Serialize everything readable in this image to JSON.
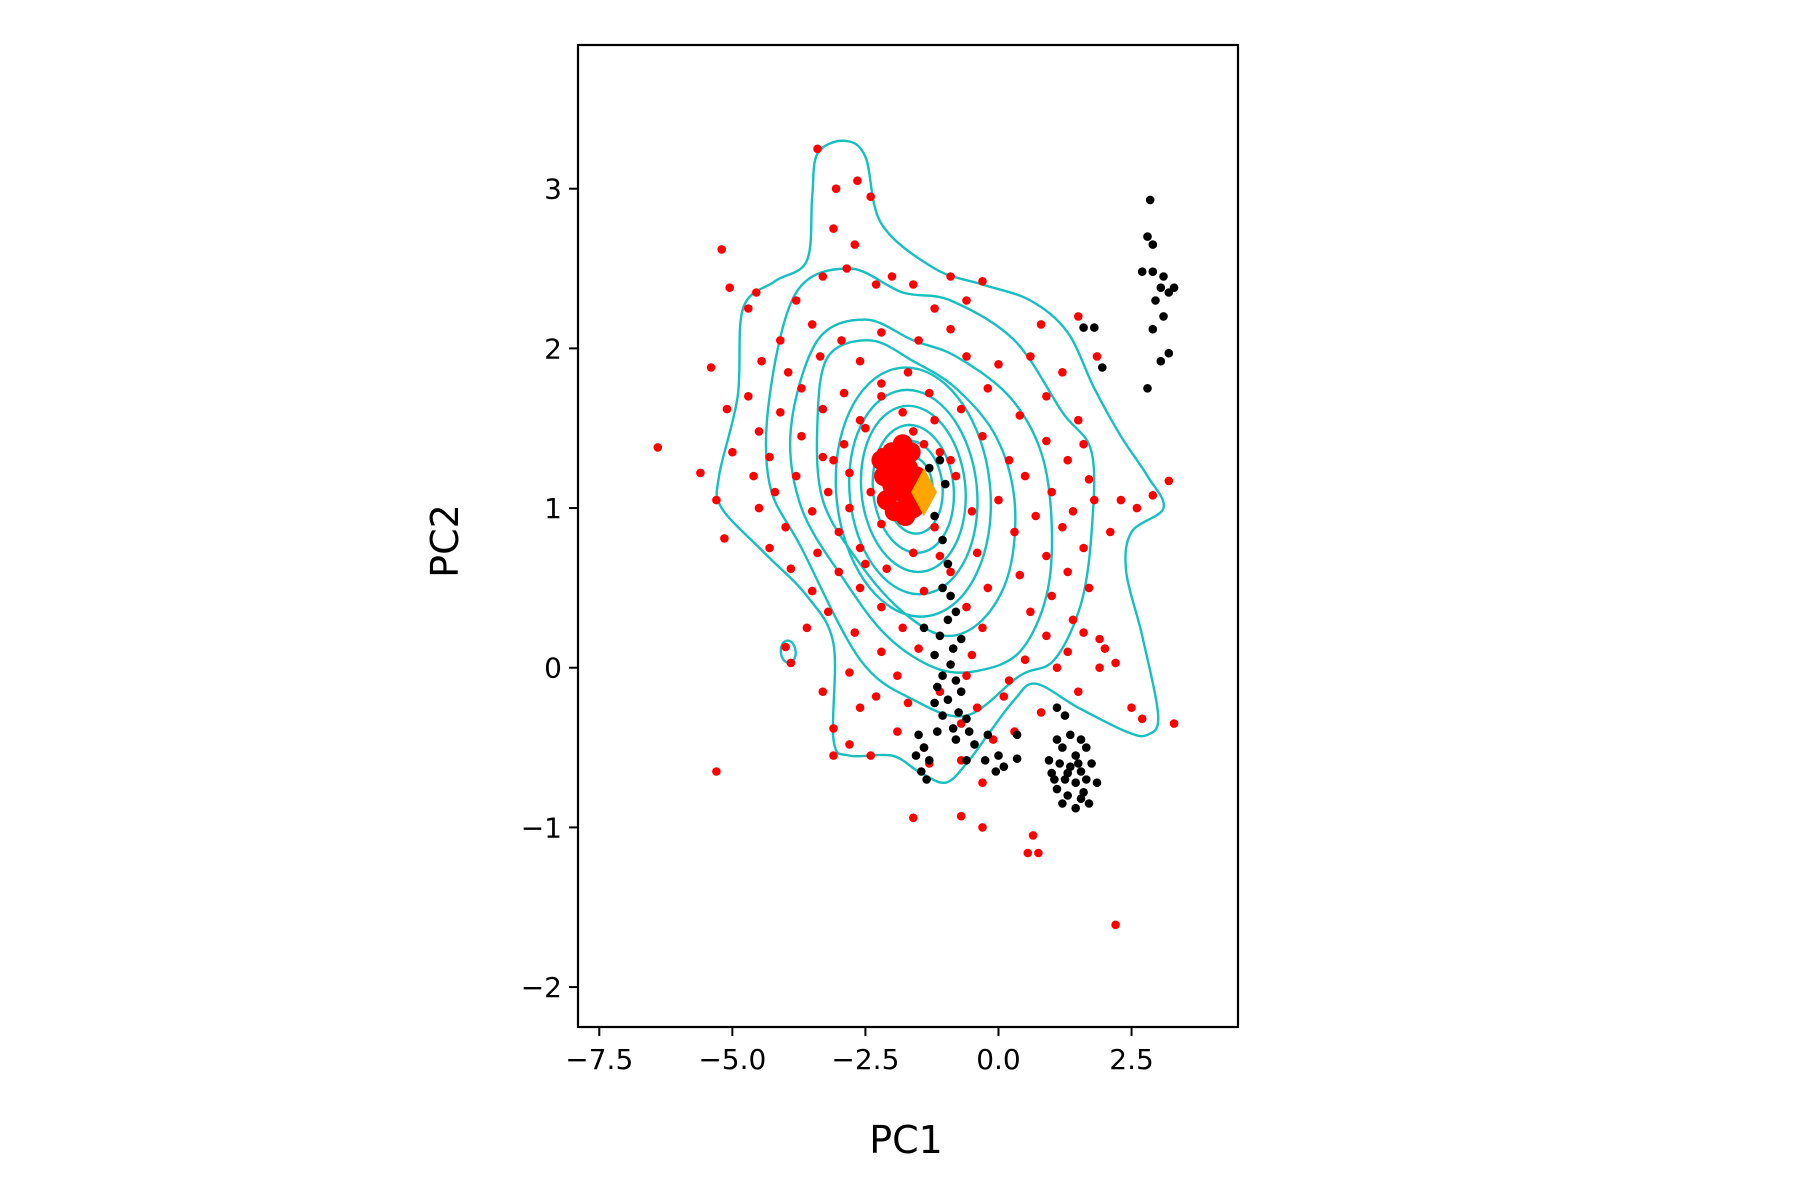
{
  "chart_data": {
    "type": "scatter",
    "title": "",
    "xlabel": "PC1",
    "ylabel": "PC2",
    "xlim": [
      -7.9,
      4.5
    ],
    "ylim": [
      -2.25,
      3.9
    ],
    "xticks": [
      {
        "value": -7.5,
        "label": "−7.5"
      },
      {
        "value": -5.0,
        "label": "−5.0"
      },
      {
        "value": -2.5,
        "label": "−2.5"
      },
      {
        "value": 0.0,
        "label": "0.0"
      },
      {
        "value": 2.5,
        "label": "2.5"
      }
    ],
    "yticks": [
      {
        "value": -2,
        "label": "−2"
      },
      {
        "value": -1,
        "label": "−1"
      },
      {
        "value": 0,
        "label": "0"
      },
      {
        "value": 1,
        "label": "1"
      },
      {
        "value": 2,
        "label": "2"
      },
      {
        "value": 3,
        "label": "3"
      }
    ],
    "grid": false,
    "legend": "none",
    "colors": {
      "red_points": "#ff0000",
      "black_points": "#000000",
      "contours": "#17bfbf",
      "marker": "#ffa500"
    },
    "series": [
      {
        "color": "red_points",
        "points": [
          [
            -3.4,
            3.25
          ],
          [
            -3.05,
            3.0
          ],
          [
            -2.65,
            3.05
          ],
          [
            -2.4,
            2.95
          ],
          [
            -3.1,
            2.75
          ],
          [
            -2.7,
            2.65
          ],
          [
            -2.85,
            2.5
          ],
          [
            -3.3,
            2.45
          ],
          [
            -2.3,
            2.4
          ],
          [
            -2.0,
            2.45
          ],
          [
            -1.6,
            2.4
          ],
          [
            -0.9,
            2.45
          ],
          [
            -0.3,
            2.42
          ],
          [
            1.5,
            2.2
          ],
          [
            -5.2,
            2.62
          ],
          [
            -4.55,
            2.35
          ],
          [
            -5.05,
            2.38
          ],
          [
            -4.7,
            2.25
          ],
          [
            -3.8,
            2.3
          ],
          [
            -1.2,
            2.25
          ],
          [
            -0.6,
            2.3
          ],
          [
            0.8,
            2.15
          ],
          [
            -4.1,
            2.05
          ],
          [
            -3.5,
            2.15
          ],
          [
            -2.95,
            2.05
          ],
          [
            -2.2,
            2.1
          ],
          [
            -1.5,
            2.05
          ],
          [
            -0.9,
            2.12
          ],
          [
            0.6,
            1.95
          ],
          [
            1.85,
            1.95
          ],
          [
            -5.4,
            1.88
          ],
          [
            -4.45,
            1.92
          ],
          [
            -3.95,
            1.85
          ],
          [
            -3.35,
            1.95
          ],
          [
            -2.6,
            1.92
          ],
          [
            -1.7,
            1.85
          ],
          [
            -0.6,
            1.95
          ],
          [
            0.0,
            1.9
          ],
          [
            1.2,
            1.85
          ],
          [
            -4.7,
            1.7
          ],
          [
            -3.7,
            1.75
          ],
          [
            -2.9,
            1.72
          ],
          [
            -2.2,
            1.78
          ],
          [
            -1.3,
            1.72
          ],
          [
            -0.2,
            1.75
          ],
          [
            0.9,
            1.7
          ],
          [
            -5.1,
            1.62
          ],
          [
            -4.1,
            1.6
          ],
          [
            -3.3,
            1.62
          ],
          [
            -0.7,
            1.62
          ],
          [
            0.4,
            1.58
          ],
          [
            1.5,
            1.55
          ],
          [
            -4.5,
            1.48
          ],
          [
            -3.7,
            1.45
          ],
          [
            -2.5,
            1.5
          ],
          [
            -1.6,
            1.48
          ],
          [
            -0.3,
            1.45
          ],
          [
            0.9,
            1.42
          ],
          [
            1.6,
            1.4
          ],
          [
            -6.4,
            1.38
          ],
          [
            -5.0,
            1.35
          ],
          [
            -4.3,
            1.32
          ],
          [
            -3.3,
            1.32
          ],
          [
            -2.2,
            1.35
          ],
          [
            -1.1,
            1.35
          ],
          [
            0.2,
            1.3
          ],
          [
            1.3,
            1.3
          ],
          [
            -4.6,
            1.2
          ],
          [
            -3.8,
            1.2
          ],
          [
            -2.8,
            1.22
          ],
          [
            -2.0,
            1.25
          ],
          [
            -0.8,
            1.2
          ],
          [
            0.5,
            1.2
          ],
          [
            1.7,
            1.18
          ],
          [
            -5.6,
            1.22
          ],
          [
            -4.2,
            1.1
          ],
          [
            -3.2,
            1.1
          ],
          [
            -2.4,
            1.1
          ],
          [
            -1.6,
            1.12
          ],
          [
            0.0,
            1.05
          ],
          [
            1.0,
            1.1
          ],
          [
            1.8,
            1.05
          ],
          [
            2.3,
            1.05
          ],
          [
            3.2,
            1.17
          ],
          [
            -5.3,
            1.05
          ],
          [
            -4.5,
            1.0
          ],
          [
            -3.5,
            0.98
          ],
          [
            -2.8,
            1.0
          ],
          [
            -1.9,
            1.0
          ],
          [
            -0.5,
            0.98
          ],
          [
            0.7,
            0.95
          ],
          [
            1.4,
            0.98
          ],
          [
            2.6,
            1.0
          ],
          [
            2.9,
            1.08
          ],
          [
            -5.15,
            0.81
          ],
          [
            -4.0,
            0.88
          ],
          [
            -3.0,
            0.85
          ],
          [
            -2.2,
            0.9
          ],
          [
            -1.2,
            0.88
          ],
          [
            0.3,
            0.85
          ],
          [
            1.2,
            0.88
          ],
          [
            2.1,
            0.85
          ],
          [
            -4.3,
            0.75
          ],
          [
            -3.4,
            0.72
          ],
          [
            -2.6,
            0.75
          ],
          [
            -1.6,
            0.72
          ],
          [
            -0.4,
            0.72
          ],
          [
            0.9,
            0.7
          ],
          [
            1.6,
            0.75
          ],
          [
            -3.9,
            0.62
          ],
          [
            -3.0,
            0.6
          ],
          [
            -2.1,
            0.62
          ],
          [
            -0.9,
            0.6
          ],
          [
            0.4,
            0.58
          ],
          [
            1.3,
            0.6
          ],
          [
            -3.5,
            0.48
          ],
          [
            -2.6,
            0.5
          ],
          [
            -1.4,
            0.48
          ],
          [
            -0.2,
            0.5
          ],
          [
            1.0,
            0.45
          ],
          [
            1.7,
            0.5
          ],
          [
            -3.2,
            0.35
          ],
          [
            -2.2,
            0.38
          ],
          [
            -0.6,
            0.38
          ],
          [
            0.6,
            0.35
          ],
          [
            1.4,
            0.3
          ],
          [
            -3.6,
            0.25
          ],
          [
            -2.7,
            0.22
          ],
          [
            -1.8,
            0.25
          ],
          [
            -0.3,
            0.25
          ],
          [
            0.9,
            0.2
          ],
          [
            1.6,
            0.22
          ],
          [
            1.9,
            0.18
          ],
          [
            -2.2,
            0.1
          ],
          [
            -1.5,
            0.12
          ],
          [
            -0.5,
            0.08
          ],
          [
            0.5,
            0.05
          ],
          [
            1.3,
            0.1
          ],
          [
            2.0,
            0.12
          ],
          [
            -4.0,
            0.13
          ],
          [
            -3.9,
            0.03
          ],
          [
            -2.8,
            -0.03
          ],
          [
            -1.9,
            -0.05
          ],
          [
            -0.6,
            -0.05
          ],
          [
            0.2,
            -0.08
          ],
          [
            1.1,
            0.0
          ],
          [
            1.9,
            0.0
          ],
          [
            2.2,
            0.03
          ],
          [
            -3.3,
            -0.15
          ],
          [
            -2.3,
            -0.18
          ],
          [
            -1.1,
            -0.15
          ],
          [
            0.1,
            -0.18
          ],
          [
            1.5,
            -0.15
          ],
          [
            -2.6,
            -0.25
          ],
          [
            -1.7,
            -0.22
          ],
          [
            -0.4,
            -0.25
          ],
          [
            0.8,
            -0.28
          ],
          [
            2.5,
            -0.25
          ],
          [
            2.7,
            -0.32
          ],
          [
            -3.1,
            -0.38
          ],
          [
            -1.9,
            -0.4
          ],
          [
            -0.7,
            -0.35
          ],
          [
            0.3,
            -0.4
          ],
          [
            3.3,
            -0.35
          ],
          [
            -2.8,
            -0.48
          ],
          [
            -1.4,
            -0.5
          ],
          [
            -0.1,
            -0.45
          ],
          [
            -3.1,
            -0.55
          ],
          [
            -2.4,
            -0.55
          ],
          [
            -1.3,
            -0.6
          ],
          [
            -0.7,
            -0.58
          ],
          [
            -5.3,
            -0.65
          ],
          [
            -0.3,
            -0.72
          ],
          [
            -1.6,
            -0.94
          ],
          [
            -0.7,
            -0.93
          ],
          [
            -0.3,
            -1.0
          ],
          [
            0.65,
            -1.05
          ],
          [
            0.55,
            -1.16
          ],
          [
            0.75,
            -1.16
          ],
          [
            2.2,
            -1.61
          ],
          [
            -2.2,
            1.7
          ],
          [
            -1.8,
            1.6
          ],
          [
            -2.6,
            1.55
          ],
          [
            -1.2,
            1.55
          ],
          [
            -2.9,
            1.4
          ],
          [
            -1.4,
            1.4
          ],
          [
            -3.1,
            1.3
          ],
          [
            -0.9,
            1.3
          ],
          [
            -2.5,
            0.65
          ],
          [
            -1.1,
            0.7
          ]
        ]
      },
      {
        "color": "red_points",
        "dense": true,
        "points": [
          [
            -1.8,
            1.1
          ],
          [
            -2.0,
            1.15
          ],
          [
            -1.7,
            1.25
          ],
          [
            -1.9,
            1.3
          ],
          [
            -2.1,
            1.05
          ],
          [
            -1.6,
            1.0
          ],
          [
            -1.75,
            0.95
          ],
          [
            -2.05,
            1.25
          ],
          [
            -1.55,
            1.2
          ],
          [
            -1.85,
            1.35
          ],
          [
            -2.15,
            1.2
          ],
          [
            -1.65,
            1.35
          ],
          [
            -1.95,
            0.98
          ],
          [
            -1.5,
            1.05
          ],
          [
            -2.2,
            1.3
          ],
          [
            -1.7,
            1.05
          ],
          [
            -1.9,
            1.2
          ],
          [
            -1.8,
            1.4
          ],
          [
            -2.0,
            1.35
          ],
          [
            -1.6,
            1.15
          ]
        ]
      },
      {
        "color": "black_points",
        "points": [
          [
            2.85,
            2.93
          ],
          [
            2.8,
            2.7
          ],
          [
            2.9,
            2.65
          ],
          [
            2.7,
            2.48
          ],
          [
            2.9,
            2.48
          ],
          [
            3.1,
            2.45
          ],
          [
            3.05,
            2.38
          ],
          [
            3.3,
            2.38
          ],
          [
            2.95,
            2.3
          ],
          [
            3.2,
            2.35
          ],
          [
            3.1,
            2.2
          ],
          [
            2.9,
            2.12
          ],
          [
            3.05,
            1.92
          ],
          [
            3.2,
            1.97
          ],
          [
            2.8,
            1.75
          ],
          [
            1.6,
            2.13
          ],
          [
            1.8,
            2.13
          ],
          [
            1.95,
            1.88
          ],
          [
            -1.1,
            1.3
          ],
          [
            -1.3,
            1.25
          ],
          [
            -1.0,
            1.15
          ],
          [
            -1.2,
            0.95
          ],
          [
            -1.05,
            0.8
          ],
          [
            -0.95,
            0.65
          ],
          [
            -1.05,
            0.5
          ],
          [
            -0.9,
            0.45
          ],
          [
            -0.8,
            0.35
          ],
          [
            -0.95,
            0.3
          ],
          [
            -1.4,
            0.25
          ],
          [
            -1.1,
            0.2
          ],
          [
            -0.7,
            0.18
          ],
          [
            -0.85,
            0.12
          ],
          [
            -1.2,
            0.08
          ],
          [
            -0.9,
            0.02
          ],
          [
            -1.05,
            -0.05
          ],
          [
            -0.8,
            -0.08
          ],
          [
            -1.15,
            -0.12
          ],
          [
            -0.7,
            -0.15
          ],
          [
            -0.95,
            -0.2
          ],
          [
            -1.2,
            -0.22
          ],
          [
            -0.75,
            -0.28
          ],
          [
            -1.05,
            -0.3
          ],
          [
            -0.6,
            -0.32
          ],
          [
            -0.85,
            -0.38
          ],
          [
            -1.15,
            -0.4
          ],
          [
            -0.55,
            -0.4
          ],
          [
            -0.8,
            -0.45
          ],
          [
            -0.45,
            -0.48
          ],
          [
            -1.5,
            -0.42
          ],
          [
            -1.4,
            -0.5
          ],
          [
            -1.55,
            -0.55
          ],
          [
            -1.3,
            -0.58
          ],
          [
            -1.45,
            -0.65
          ],
          [
            -1.35,
            -0.7
          ],
          [
            -0.2,
            -0.42
          ],
          [
            0.35,
            -0.42
          ],
          [
            0.0,
            -0.55
          ],
          [
            -0.25,
            -0.58
          ],
          [
            0.1,
            -0.62
          ],
          [
            -0.05,
            -0.65
          ],
          [
            0.35,
            -0.57
          ],
          [
            -0.6,
            -0.58
          ],
          [
            1.1,
            -0.25
          ],
          [
            1.25,
            -0.3
          ],
          [
            1.1,
            -0.45
          ],
          [
            1.35,
            -0.42
          ],
          [
            1.55,
            -0.45
          ],
          [
            1.2,
            -0.5
          ],
          [
            1.45,
            -0.55
          ],
          [
            1.65,
            -0.5
          ],
          [
            0.95,
            -0.58
          ],
          [
            1.15,
            -0.6
          ],
          [
            1.35,
            -0.62
          ],
          [
            1.55,
            -0.65
          ],
          [
            1.75,
            -0.6
          ],
          [
            1.0,
            -0.66
          ],
          [
            1.25,
            -0.7
          ],
          [
            1.45,
            -0.72
          ],
          [
            1.65,
            -0.7
          ],
          [
            1.85,
            -0.72
          ],
          [
            1.1,
            -0.76
          ],
          [
            1.3,
            -0.8
          ],
          [
            1.55,
            -0.82
          ],
          [
            1.7,
            -0.85
          ],
          [
            1.2,
            -0.85
          ],
          [
            1.45,
            -0.88
          ],
          [
            1.05,
            -0.7
          ],
          [
            1.6,
            -0.78
          ],
          [
            1.3,
            -0.66
          ],
          [
            1.5,
            -0.6
          ]
        ]
      }
    ],
    "marker": {
      "shape": "diamond",
      "x": -1.4,
      "y": 1.1,
      "color": "marker"
    }
  }
}
